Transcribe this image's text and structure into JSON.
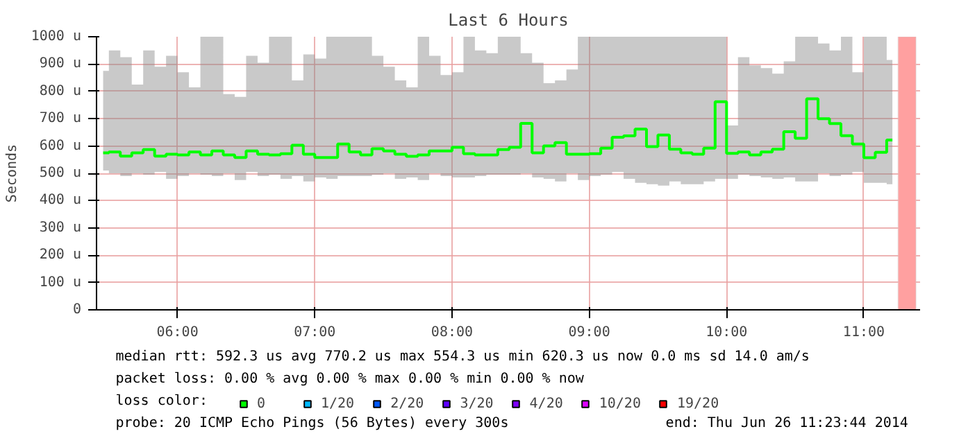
{
  "chart_data": {
    "type": "step",
    "title": "Last 6 Hours",
    "ylabel": "Seconds",
    "x": [
      5.4583,
      5.5417,
      5.625,
      5.7083,
      5.7917,
      5.875,
      5.9583,
      6.0417,
      6.125,
      6.2083,
      6.2917,
      6.375,
      6.4583,
      6.5417,
      6.625,
      6.7083,
      6.7917,
      6.875,
      6.9583,
      7.0417,
      7.125,
      7.2083,
      7.2917,
      7.375,
      7.4583,
      7.5417,
      7.625,
      7.7083,
      7.7917,
      7.875,
      7.9583,
      8.0417,
      8.125,
      8.2083,
      8.2917,
      8.375,
      8.4583,
      8.5417,
      8.625,
      8.7083,
      8.7917,
      8.875,
      8.9583,
      9.0417,
      9.125,
      9.2083,
      9.2917,
      9.375,
      9.4583,
      9.5417,
      9.625,
      9.7083,
      9.7917,
      9.875,
      9.9583,
      10.0417,
      10.125,
      10.2083,
      10.2917,
      10.375,
      10.4583,
      10.5417,
      10.625,
      10.7083,
      10.7917,
      10.875,
      10.9583,
      11.0417,
      11.125,
      11.2083
    ],
    "series": [
      {
        "name": "0",
        "color": "#00ff00",
        "values": [
          575,
          578,
          563,
          575,
          587,
          563,
          570,
          567,
          578,
          567,
          582,
          567,
          558,
          582,
          570,
          567,
          572,
          603,
          570,
          558,
          558,
          607,
          578,
          567,
          590,
          582,
          570,
          562,
          567,
          582,
          582,
          595,
          572,
          567,
          567,
          587,
          595,
          683,
          575,
          600,
          612,
          570,
          570,
          572,
          592,
          632,
          637,
          662,
          598,
          640,
          588,
          575,
          570,
          592,
          762,
          573,
          578,
          567,
          578,
          588,
          652,
          628,
          773,
          700,
          682,
          638,
          607,
          557,
          577,
          622
        ],
        "lower": [
          510,
          500,
          490,
          500,
          495,
          505,
          480,
          490,
          500,
          495,
          490,
          500,
          475,
          505,
          490,
          495,
          480,
          490,
          470,
          485,
          480,
          490,
          490,
          490,
          495,
          500,
          480,
          485,
          475,
          500,
          490,
          485,
          485,
          490,
          495,
          495,
          495,
          500,
          485,
          480,
          470,
          500,
          475,
          490,
          495,
          505,
          480,
          465,
          460,
          455,
          470,
          460,
          460,
          470,
          480,
          480,
          495,
          490,
          485,
          480,
          485,
          470,
          470,
          500,
          490,
          495,
          505,
          465,
          465,
          460
        ],
        "upper": [
          875,
          950,
          925,
          825,
          950,
          890,
          930,
          870,
          815,
          1000,
          1000,
          790,
          780,
          930,
          905,
          1000,
          1000,
          840,
          935,
          920,
          1000,
          1000,
          1000,
          1000,
          930,
          890,
          840,
          815,
          1000,
          930,
          860,
          870,
          1000,
          950,
          940,
          1000,
          1000,
          940,
          905,
          830,
          840,
          880,
          1000,
          1000,
          1000,
          1000,
          1000,
          1000,
          1000,
          1000,
          1000,
          1000,
          1000,
          1000,
          1000,
          675,
          925,
          895,
          885,
          865,
          910,
          1000,
          1000,
          975,
          950,
          1000,
          870,
          1000,
          1000,
          915
        ]
      },
      {
        "name": "1/20",
        "color": "#00b8ff",
        "values": [
          null,
          null,
          null,
          null,
          null,
          null,
          null,
          null,
          null,
          null,
          null,
          null,
          null,
          null,
          null,
          null,
          null,
          null,
          null,
          null,
          null,
          null,
          null,
          null,
          null,
          null,
          null,
          null,
          null,
          null,
          null,
          null,
          null,
          null,
          null,
          null,
          null,
          null,
          null,
          null,
          null,
          null,
          null,
          null,
          null,
          null,
          null,
          null,
          null,
          null,
          null,
          null,
          null,
          null,
          null,
          null,
          null,
          null,
          null,
          null,
          null,
          null,
          null,
          null,
          null,
          null,
          null,
          null,
          null,
          null
        ]
      },
      {
        "name": "2/20",
        "color": "#0059ff",
        "values": [
          null,
          null,
          null,
          null,
          null,
          null,
          null,
          null,
          null,
          null,
          null,
          null,
          null,
          null,
          null,
          null,
          null,
          null,
          null,
          null,
          null,
          null,
          null,
          null,
          null,
          null,
          null,
          null,
          null,
          null,
          null,
          null,
          null,
          null,
          null,
          null,
          null,
          null,
          null,
          null,
          null,
          null,
          null,
          null,
          null,
          null,
          null,
          null,
          null,
          null,
          null,
          null,
          null,
          null,
          null,
          null,
          null,
          null,
          null,
          null,
          null,
          null,
          null,
          null,
          null,
          null,
          null,
          null,
          null,
          null
        ]
      },
      {
        "name": "3/20",
        "color": "#5e00ff",
        "values": [
          null,
          null,
          null,
          null,
          null,
          null,
          null,
          null,
          null,
          null,
          null,
          null,
          null,
          null,
          null,
          null,
          null,
          null,
          null,
          null,
          null,
          null,
          null,
          null,
          null,
          null,
          null,
          null,
          null,
          null,
          null,
          null,
          null,
          null,
          null,
          null,
          null,
          null,
          null,
          null,
          null,
          null,
          null,
          null,
          null,
          null,
          null,
          null,
          null,
          null,
          null,
          null,
          null,
          null,
          null,
          null,
          null,
          null,
          null,
          null,
          null,
          null,
          null,
          null,
          null,
          null,
          null,
          null,
          null,
          null
        ]
      },
      {
        "name": "4/20",
        "color": "#7e00ff",
        "values": [
          null,
          null,
          null,
          null,
          null,
          null,
          null,
          null,
          null,
          null,
          null,
          null,
          null,
          null,
          null,
          null,
          null,
          null,
          null,
          null,
          null,
          null,
          null,
          null,
          null,
          null,
          null,
          null,
          null,
          null,
          null,
          null,
          null,
          null,
          null,
          null,
          null,
          null,
          null,
          null,
          null,
          null,
          null,
          null,
          null,
          null,
          null,
          null,
          null,
          null,
          null,
          null,
          null,
          null,
          null,
          null,
          null,
          null,
          null,
          null,
          null,
          null,
          null,
          null,
          null,
          null,
          null,
          null,
          null,
          null
        ]
      },
      {
        "name": "10/20",
        "color": "#dd00ff",
        "values": [
          null,
          null,
          null,
          null,
          null,
          null,
          null,
          null,
          null,
          null,
          null,
          null,
          null,
          null,
          null,
          null,
          null,
          null,
          null,
          null,
          null,
          null,
          null,
          null,
          null,
          null,
          null,
          null,
          null,
          null,
          null,
          null,
          null,
          null,
          null,
          null,
          null,
          null,
          null,
          null,
          null,
          null,
          null,
          null,
          null,
          null,
          null,
          null,
          null,
          null,
          null,
          null,
          null,
          null,
          null,
          null,
          null,
          null,
          null,
          null,
          null,
          null,
          null,
          null,
          null,
          null,
          null,
          null,
          null,
          null
        ]
      },
      {
        "name": "19/20",
        "color": "#ff0000",
        "values": [
          null,
          null,
          null,
          null,
          null,
          null,
          null,
          null,
          null,
          null,
          null,
          null,
          null,
          null,
          null,
          null,
          null,
          null,
          null,
          null,
          null,
          null,
          null,
          null,
          null,
          null,
          null,
          null,
          null,
          null,
          null,
          null,
          null,
          null,
          null,
          null,
          null,
          null,
          null,
          null,
          null,
          null,
          null,
          null,
          null,
          null,
          null,
          null,
          null,
          null,
          null,
          null,
          null,
          null,
          null,
          null,
          null,
          null,
          null,
          null,
          null,
          null,
          null,
          null,
          null,
          null,
          null,
          null,
          null,
          null
        ]
      }
    ],
    "legend_title": "loss color:",
    "legend": "bottom",
    "xlim": [
      5.41,
      11.41
    ],
    "xticks": [
      {
        "value": 6,
        "label": "06:00"
      },
      {
        "value": 7,
        "label": "07:00"
      },
      {
        "value": 8,
        "label": "08:00"
      },
      {
        "value": 9,
        "label": "09:00"
      },
      {
        "value": 10,
        "label": "10:00"
      },
      {
        "value": 11,
        "label": "11:00"
      }
    ],
    "ylim": [
      0,
      1000
    ],
    "yticks": [
      0,
      {
        "value": 100,
        "label": "100 u"
      },
      {
        "value": 200,
        "label": "200 u"
      },
      {
        "value": 300,
        "label": "300 u"
      },
      {
        "value": 400,
        "label": "400 u"
      },
      {
        "value": 500,
        "label": "500 u"
      },
      {
        "value": 600,
        "label": "600 u"
      },
      {
        "value": 700,
        "label": "700 u"
      },
      {
        "value": 800,
        "label": "800 u"
      },
      {
        "value": 900,
        "label": "900 u"
      },
      {
        "value": 1000,
        "label": "1000 u"
      }
    ],
    "grid": true,
    "bands": [
      {
        "axis": "x",
        "from": 11.25,
        "to": 11.38,
        "color": "#ffa0a0"
      }
    ],
    "annotations": [
      "median rtt:  592.3 us avg  770.2 us max  554.3 us min  620.3 us now  0.0 ms sd  14.0   am/s",
      "packet loss: 0.00 % avg  0.00 % max  0.00 % min  0.00 % now",
      "probe:       20 ICMP Echo Pings (56 Bytes) every 300s",
      "end: Thu Jun 26 11:23:44 2014"
    ]
  }
}
